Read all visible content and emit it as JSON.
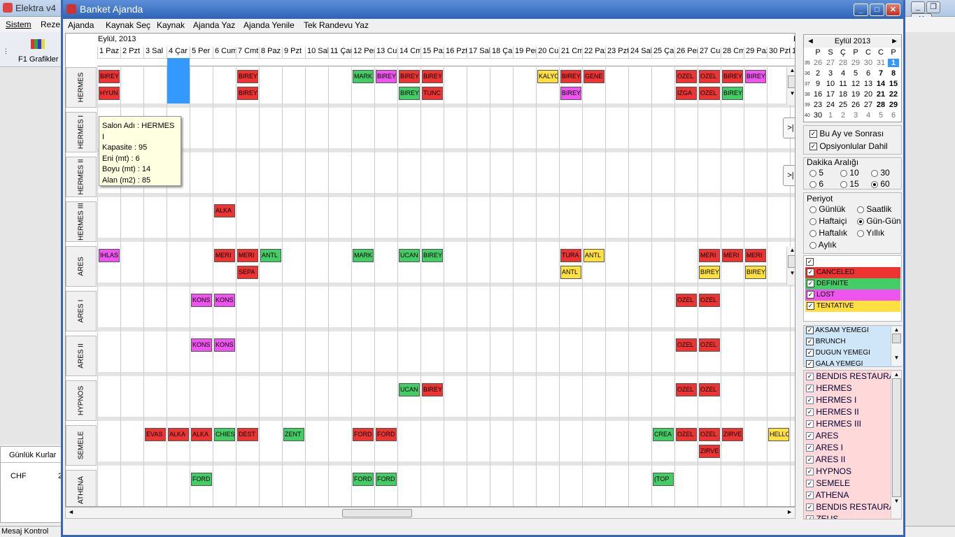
{
  "bg_app": {
    "title": "Elektra v4",
    "menu": [
      "Sistem",
      "Reze"
    ],
    "toolbar_btn": "F1 Grafikler",
    "kurlar_title": "Günlük Kurlar",
    "kurlar_row": "CHF",
    "kurlar_val": "2",
    "status": "Mesaj Kontrol"
  },
  "window": {
    "title": "Banket Ajanda",
    "menu": [
      "Ajanda",
      "Kaynak Seç",
      "Kaynak",
      "Ajanda Yaz",
      "Ajanda Yenile",
      "Tek Randevu Yaz"
    ]
  },
  "grid": {
    "month": "Eylül, 2013",
    "extra_header": "E",
    "days": [
      "1 Paz",
      "2 Pzt",
      "3 Sal",
      "4 Çar",
      "5 Per",
      "6 Cum",
      "7 Cmt",
      "8 Paz",
      "9 Pzt",
      "10 Sal",
      "11 Çar",
      "12 Per",
      "13 Cum",
      "14 Cmt",
      "15 Paz",
      "16 Pzt",
      "17 Sal",
      "18 Çar",
      "19 Per",
      "20 Cum",
      "21 Cmt",
      "22 Paz",
      "23 Pzt",
      "24 Sal",
      "25 Çar",
      "26 Per",
      "27 Cum",
      "28 Cmt",
      "29 Paz",
      "30 Pzt",
      "1"
    ],
    "rooms": [
      "HERMES",
      "HERMES I",
      "HERMES II",
      "HERMES III",
      "ARES",
      "ARES I",
      "ARES II",
      "HYPNOS",
      "SEMELE",
      "ATHENA"
    ],
    "events": [
      {
        "r": 0,
        "d": 0,
        "l": 0,
        "t": "BIREY",
        "c": "r"
      },
      {
        "r": 0,
        "d": 0,
        "l": 1,
        "t": "HYUN",
        "c": "r"
      },
      {
        "r": 0,
        "d": 6,
        "l": 0,
        "t": "BIREY",
        "c": "r"
      },
      {
        "r": 0,
        "d": 6,
        "l": 1,
        "t": "BIREY",
        "c": "r"
      },
      {
        "r": 0,
        "d": 11,
        "l": 0,
        "t": "MARK",
        "c": "g"
      },
      {
        "r": 0,
        "d": 12,
        "l": 0,
        "t": "BIREY",
        "c": "m"
      },
      {
        "r": 0,
        "d": 13,
        "l": 0,
        "t": "BIREY",
        "c": "r"
      },
      {
        "r": 0,
        "d": 13,
        "l": 1,
        "t": "BIREY",
        "c": "g"
      },
      {
        "r": 0,
        "d": 14,
        "l": 0,
        "t": "BIREY",
        "c": "r"
      },
      {
        "r": 0,
        "d": 14,
        "l": 1,
        "t": "TUNC",
        "c": "r"
      },
      {
        "r": 0,
        "d": 19,
        "l": 0,
        "t": "KALYO",
        "c": "y"
      },
      {
        "r": 0,
        "d": 20,
        "l": 0,
        "t": "BIREY",
        "c": "r"
      },
      {
        "r": 0,
        "d": 20,
        "l": 1,
        "t": "BIREY",
        "c": "m"
      },
      {
        "r": 0,
        "d": 21,
        "l": 0,
        "t": "GENE",
        "c": "r"
      },
      {
        "r": 0,
        "d": 25,
        "l": 0,
        "t": "OZEL",
        "c": "r"
      },
      {
        "r": 0,
        "d": 25,
        "l": 1,
        "t": "IZGA",
        "c": "r"
      },
      {
        "r": 0,
        "d": 26,
        "l": 0,
        "t": "OZEL",
        "c": "r"
      },
      {
        "r": 0,
        "d": 26,
        "l": 1,
        "t": "OZEL",
        "c": "r"
      },
      {
        "r": 0,
        "d": 27,
        "l": 0,
        "t": "BIREY",
        "c": "r"
      },
      {
        "r": 0,
        "d": 27,
        "l": 1,
        "t": "BIREY",
        "c": "g"
      },
      {
        "r": 0,
        "d": 28,
        "l": 0,
        "t": "BIREY",
        "c": "m"
      },
      {
        "r": 3,
        "d": 5,
        "l": 0,
        "t": "ALKA",
        "c": "r"
      },
      {
        "r": 4,
        "d": 0,
        "l": 0,
        "t": "IHLAS",
        "c": "m"
      },
      {
        "r": 4,
        "d": 5,
        "l": 0,
        "t": "MERI",
        "c": "r"
      },
      {
        "r": 4,
        "d": 6,
        "l": 0,
        "t": "MERI",
        "c": "r"
      },
      {
        "r": 4,
        "d": 6,
        "l": 1,
        "t": "SEPA",
        "c": "r"
      },
      {
        "r": 4,
        "d": 7,
        "l": 0,
        "t": "ANTL",
        "c": "g"
      },
      {
        "r": 4,
        "d": 11,
        "l": 0,
        "t": "MARK",
        "c": "g"
      },
      {
        "r": 4,
        "d": 13,
        "l": 0,
        "t": "UCAN",
        "c": "g"
      },
      {
        "r": 4,
        "d": 14,
        "l": 0,
        "t": "BIREY",
        "c": "g"
      },
      {
        "r": 4,
        "d": 20,
        "l": 0,
        "t": "TURA",
        "c": "r"
      },
      {
        "r": 4,
        "d": 20,
        "l": 1,
        "t": "ANTL",
        "c": "y"
      },
      {
        "r": 4,
        "d": 21,
        "l": 0,
        "t": "ANTL",
        "c": "y"
      },
      {
        "r": 4,
        "d": 26,
        "l": 0,
        "t": "MERI",
        "c": "r"
      },
      {
        "r": 4,
        "d": 26,
        "l": 1,
        "t": "BIREY",
        "c": "y"
      },
      {
        "r": 4,
        "d": 27,
        "l": 0,
        "t": "MERI",
        "c": "r"
      },
      {
        "r": 4,
        "d": 28,
        "l": 0,
        "t": "MERI",
        "c": "r"
      },
      {
        "r": 4,
        "d": 28,
        "l": 1,
        "t": "BIREY",
        "c": "y"
      },
      {
        "r": 5,
        "d": 4,
        "l": 0,
        "t": "KONS",
        "c": "m"
      },
      {
        "r": 5,
        "d": 5,
        "l": 0,
        "t": "KONS",
        "c": "m"
      },
      {
        "r": 5,
        "d": 25,
        "l": 0,
        "t": "OZEL",
        "c": "r"
      },
      {
        "r": 5,
        "d": 26,
        "l": 0,
        "t": "OZEL",
        "c": "r"
      },
      {
        "r": 6,
        "d": 4,
        "l": 0,
        "t": "KONS",
        "c": "m"
      },
      {
        "r": 6,
        "d": 5,
        "l": 0,
        "t": "KONS",
        "c": "m"
      },
      {
        "r": 6,
        "d": 25,
        "l": 0,
        "t": "OZEL",
        "c": "r"
      },
      {
        "r": 6,
        "d": 26,
        "l": 0,
        "t": "OZEL",
        "c": "r"
      },
      {
        "r": 7,
        "d": 13,
        "l": 0,
        "t": "UCAN",
        "c": "g"
      },
      {
        "r": 7,
        "d": 14,
        "l": 0,
        "t": "BIREY",
        "c": "r"
      },
      {
        "r": 7,
        "d": 25,
        "l": 0,
        "t": "OZEL",
        "c": "r"
      },
      {
        "r": 7,
        "d": 26,
        "l": 0,
        "t": "OZEL",
        "c": "r"
      },
      {
        "r": 8,
        "d": 2,
        "l": 0,
        "t": "EVAS",
        "c": "r"
      },
      {
        "r": 8,
        "d": 3,
        "l": 0,
        "t": "ALKA",
        "c": "r"
      },
      {
        "r": 8,
        "d": 4,
        "l": 0,
        "t": "ALKA",
        "c": "r"
      },
      {
        "r": 8,
        "d": 5,
        "l": 0,
        "t": "CHIES",
        "c": "g"
      },
      {
        "r": 8,
        "d": 6,
        "l": 0,
        "t": "DEST",
        "c": "r"
      },
      {
        "r": 8,
        "d": 8,
        "l": 0,
        "t": "ZENT",
        "c": "g"
      },
      {
        "r": 8,
        "d": 11,
        "l": 0,
        "t": "FORD",
        "c": "r"
      },
      {
        "r": 8,
        "d": 12,
        "l": 0,
        "t": "FORD",
        "c": "r"
      },
      {
        "r": 8,
        "d": 24,
        "l": 0,
        "t": "CREA",
        "c": "g"
      },
      {
        "r": 8,
        "d": 25,
        "l": 0,
        "t": "OZEL",
        "c": "r"
      },
      {
        "r": 8,
        "d": 26,
        "l": 0,
        "t": "OZEL",
        "c": "r"
      },
      {
        "r": 8,
        "d": 26,
        "l": 1,
        "t": "ZIRVE",
        "c": "r"
      },
      {
        "r": 8,
        "d": 27,
        "l": 0,
        "t": "ZIRVE",
        "c": "r"
      },
      {
        "r": 8,
        "d": 29,
        "l": 0,
        "t": "HELLO",
        "c": "y"
      },
      {
        "r": 9,
        "d": 4,
        "l": 0,
        "t": "FORD",
        "c": "g"
      },
      {
        "r": 9,
        "d": 11,
        "l": 0,
        "t": "FORD",
        "c": "g"
      },
      {
        "r": 9,
        "d": 12,
        "l": 0,
        "t": "FORD",
        "c": "g"
      },
      {
        "r": 9,
        "d": 24,
        "l": 0,
        "t": "(TOP",
        "c": "g"
      }
    ]
  },
  "tooltip": [
    "Salon Adı : HERMES I",
    "Kapasite : 95",
    "Eni (mt) : 6",
    "Boyu (mt) : 14",
    "Alan (m2) : 85"
  ],
  "calendar": {
    "title": "Eylül 2013",
    "weekdays": [
      "P",
      "S",
      "Ç",
      "P",
      "C",
      "C",
      "P"
    ],
    "weeks": [
      {
        "n": "35",
        "d": [
          "26",
          "27",
          "28",
          "29",
          "30",
          "31",
          "1"
        ]
      },
      {
        "n": "36",
        "d": [
          "2",
          "3",
          "4",
          "5",
          "6",
          "7",
          "8"
        ]
      },
      {
        "n": "37",
        "d": [
          "9",
          "10",
          "11",
          "12",
          "13",
          "14",
          "15"
        ]
      },
      {
        "n": "38",
        "d": [
          "16",
          "17",
          "18",
          "19",
          "20",
          "21",
          "22"
        ]
      },
      {
        "n": "39",
        "d": [
          "23",
          "24",
          "25",
          "26",
          "27",
          "28",
          "29"
        ]
      },
      {
        "n": "40",
        "d": [
          "30",
          "1",
          "2",
          "3",
          "4",
          "5",
          "6"
        ]
      }
    ]
  },
  "filters": {
    "bu_ay": "Bu Ay ve Sonrası",
    "opsiyon": "Opsiyonlular Dahil"
  },
  "dakika": {
    "title": "Dakika Aralığı",
    "opts": [
      "5",
      "10",
      "30",
      "6",
      "15",
      "60"
    ],
    "selected": "60"
  },
  "periyot": {
    "title": "Periyot",
    "opts": [
      "Günlük",
      "Saatlik",
      "Haftaiçi",
      "Gün-Gün",
      "Haftalık",
      "Yıllık",
      "Aylık"
    ],
    "selected": "Gün-Gün"
  },
  "statuses": [
    {
      "name": "CANCELED",
      "color": "#ee3333"
    },
    {
      "name": "DEFINITE",
      "color": "#44cc66"
    },
    {
      "name": "LOST",
      "color": "#ee55ee"
    },
    {
      "name": "TENTATIVE",
      "color": "#ffe040"
    }
  ],
  "meals": [
    "AKSAM YEMEGI",
    "BRUNCH",
    "DUGUN YEMEGI",
    "GALA YEMEGI"
  ],
  "resources": [
    "BENDIS RESTAURANT",
    "HERMES",
    "HERMES I",
    "HERMES II",
    "HERMES III",
    "ARES",
    "ARES I",
    "ARES II",
    "HYPNOS",
    "SEMELE",
    "ATHENA",
    "BENDIS RESTAURANT",
    "ZEUS"
  ]
}
